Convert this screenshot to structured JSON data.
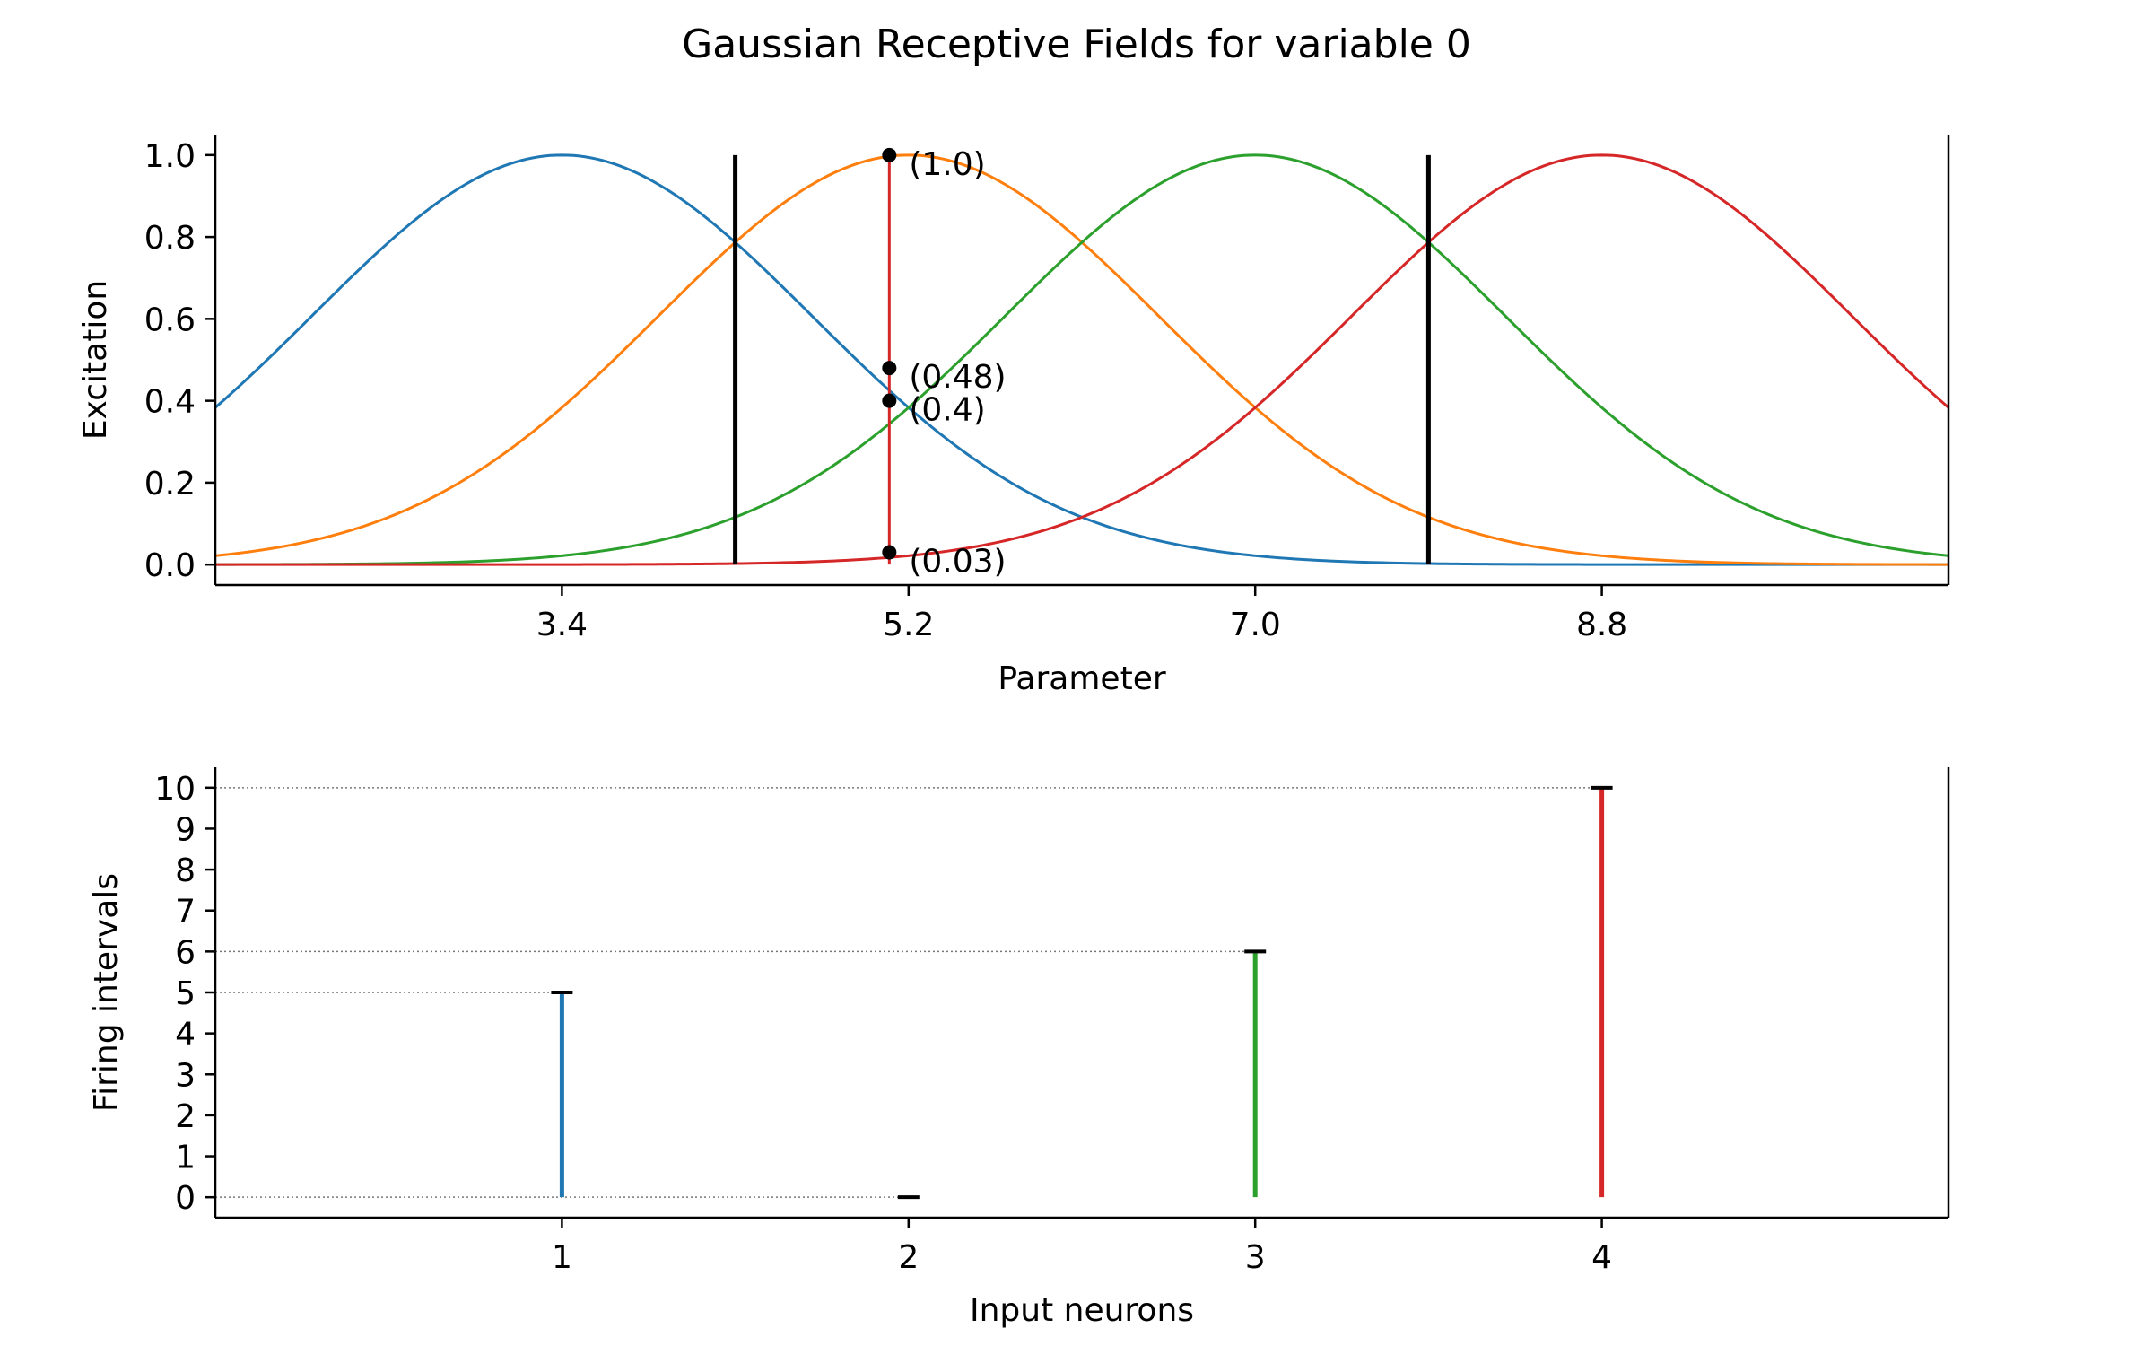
{
  "figure": {
    "title": "Gaussian Receptive Fields for variable 0"
  },
  "chart_data": [
    {
      "type": "line",
      "xlabel": "Parameter",
      "ylabel": "Excitation",
      "xlim": [
        1.6,
        10.6
      ],
      "ylim": [
        -0.05,
        1.05
      ],
      "xticks": [
        3.4,
        5.2,
        7.0,
        8.8
      ],
      "xtick_labels": [
        "3.4",
        "5.2",
        "7.0",
        "8.8"
      ],
      "yticks": [
        0.0,
        0.2,
        0.4,
        0.6,
        0.8,
        1.0
      ],
      "ytick_labels": [
        "0.0",
        "0.2",
        "0.4",
        "0.6",
        "0.8",
        "1.0"
      ],
      "grid": false,
      "series": [
        {
          "color": "#1f77b4",
          "center": 3.4,
          "sigma": 1.3
        },
        {
          "color": "#ff7f0e",
          "center": 5.2,
          "sigma": 1.3
        },
        {
          "color": "#2ca02c",
          "center": 7.0,
          "sigma": 1.3
        },
        {
          "color": "#d62728",
          "center": 8.8,
          "sigma": 1.3
        }
      ],
      "vertical_lines": [
        {
          "x": 4.3,
          "y_top": 1.0,
          "color": "#000000"
        },
        {
          "x": 7.9,
          "y_top": 1.0,
          "color": "#000000"
        }
      ],
      "sample_line": {
        "x": 5.1,
        "y_bottom": 0.0,
        "y_top": 1.0,
        "color": "#d62728"
      },
      "points": [
        {
          "x": 5.1,
          "y": 1.0,
          "label": "(1.0)"
        },
        {
          "x": 5.1,
          "y": 0.48,
          "label": "(0.48)"
        },
        {
          "x": 5.1,
          "y": 0.4,
          "label": "(0.4)"
        },
        {
          "x": 5.1,
          "y": 0.03,
          "label": "(0.03)"
        }
      ]
    },
    {
      "type": "bar",
      "xlabel": "Input neurons",
      "ylabel": "Firing intervals",
      "xlim": [
        0,
        5
      ],
      "ylim": [
        -0.5,
        10.5
      ],
      "xticks": [
        1,
        2,
        3,
        4
      ],
      "xtick_labels": [
        "1",
        "2",
        "3",
        "4"
      ],
      "yticks": [
        0,
        1,
        2,
        3,
        4,
        5,
        6,
        7,
        8,
        9,
        10
      ],
      "ytick_labels": [
        "0",
        "1",
        "2",
        "3",
        "4",
        "5",
        "6",
        "7",
        "8",
        "9",
        "10"
      ],
      "guide_lines": [
        0,
        5,
        6,
        10
      ],
      "categories": [
        1,
        2,
        3,
        4
      ],
      "values": [
        5,
        0,
        6,
        10
      ],
      "colors": [
        "#1f77b4",
        "#ff7f0e",
        "#2ca02c",
        "#d62728"
      ]
    }
  ]
}
